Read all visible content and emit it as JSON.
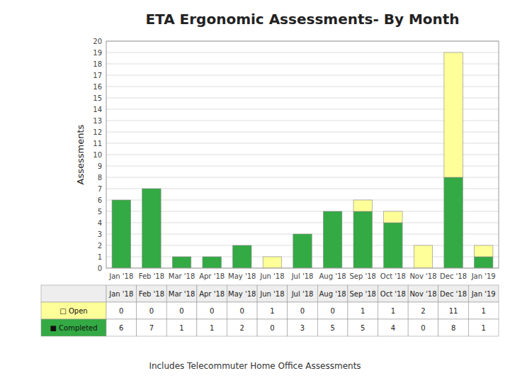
{
  "chart_data": {
    "type": "bar",
    "stacked": true,
    "title": "ETA Ergonomic Assessments- By Month",
    "ylabel": "Assessments",
    "annotations": [
      "Includes Telecommuter Home Office Assessments"
    ],
    "categories": [
      "Jan '18",
      "Feb '18",
      "Mar '18",
      "Apr '18",
      "May '18",
      "Jun '18",
      "Jul '18",
      "Aug '18",
      "Sep '18",
      "Oct '18",
      "Nov '18",
      "Dec '18",
      "Jan '19"
    ],
    "series": [
      {
        "name": "■ Completed",
        "color": "#33AA44",
        "values": [
          6,
          7,
          1,
          1,
          2,
          0,
          3,
          5,
          5,
          4,
          0,
          8,
          1
        ]
      },
      {
        "name": "□ Open",
        "color": "#FFFF99",
        "values": [
          0,
          0,
          0,
          0,
          0,
          1,
          0,
          0,
          1,
          1,
          2,
          11,
          1
        ]
      }
    ],
    "ylim": [
      0,
      20
    ],
    "yticks": [
      0,
      1,
      2,
      3,
      4,
      5,
      6,
      7,
      8,
      9,
      10,
      11,
      12,
      13,
      14,
      15,
      16,
      17,
      18,
      19,
      20
    ],
    "grid": true
  }
}
